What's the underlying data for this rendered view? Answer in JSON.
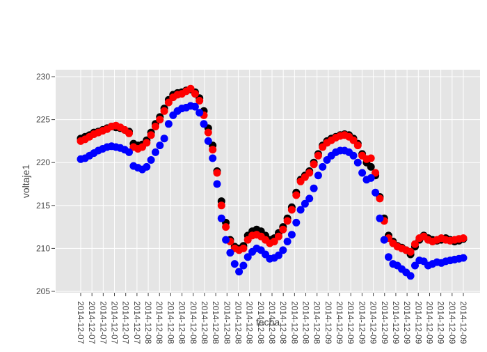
{
  "chart_data": {
    "type": "scatter",
    "title": "",
    "xlabel": "fecha",
    "ylabel": "voltaje1",
    "ylim": [
      205,
      230
    ],
    "yticks": [
      205,
      210,
      215,
      220,
      225,
      230
    ],
    "xtick_labels": [
      "2014-12-07",
      "2014-12-07",
      "2014-12-07",
      "2014-12-07",
      "2014-12-07",
      "2014-12-07",
      "2014-12-08",
      "2014-12-08",
      "2014-12-08",
      "2014-12-08",
      "2014-12-08",
      "2014-12-08",
      "2014-12-08",
      "2014-12-08",
      "2014-12-08",
      "2014-12-08",
      "2014-12-08",
      "2014-12-08",
      "2014-12-08",
      "2014-12-08",
      "2014-12-08",
      "2014-12-08",
      "2014-12-09",
      "2014-12-09",
      "2014-12-09",
      "2014-12-09",
      "2014-12-09",
      "2014-12-09",
      "2014-12-09",
      "2014-12-09",
      "2014-12-09",
      "2014-12-09",
      "2014-12-09",
      "2014-12-09",
      "2014-12-09"
    ],
    "x_index_range": [
      0,
      34
    ],
    "grid": true,
    "background": "#e5e5e5",
    "series": [
      {
        "color": "#000000",
        "points": [
          [
            0,
            222.8
          ],
          [
            0.5,
            223.0
          ],
          [
            1,
            223.2
          ],
          [
            1.5,
            223.5
          ],
          [
            2,
            223.6
          ],
          [
            2.5,
            223.8
          ],
          [
            3,
            224.0
          ],
          [
            3.5,
            224.2
          ],
          [
            4,
            224.1
          ],
          [
            4.5,
            224.0
          ],
          [
            5,
            223.8
          ],
          [
            5.5,
            223.6
          ],
          [
            6,
            222.2
          ],
          [
            6.5,
            222.0
          ],
          [
            7,
            222.1
          ],
          [
            7.5,
            222.6
          ],
          [
            8,
            223.5
          ],
          [
            8.5,
            224.5
          ],
          [
            9,
            225.3
          ],
          [
            9.5,
            226.3
          ],
          [
            10,
            227.3
          ],
          [
            10.5,
            227.9
          ],
          [
            11,
            228.1
          ],
          [
            11.5,
            228.2
          ],
          [
            12,
            228.4
          ],
          [
            12.5,
            228.5
          ],
          [
            13,
            228.2
          ],
          [
            13.5,
            227.5
          ],
          [
            14,
            226.0
          ],
          [
            14.5,
            224.0
          ],
          [
            15,
            222.0
          ],
          [
            15.5,
            219.0
          ],
          [
            16,
            215.5
          ],
          [
            16.5,
            213.0
          ],
          [
            17,
            211.0
          ],
          [
            17.5,
            210.2
          ],
          [
            18,
            210.0
          ],
          [
            18.5,
            210.3
          ],
          [
            19,
            211.5
          ],
          [
            19.5,
            212.0
          ],
          [
            20,
            212.2
          ],
          [
            20.5,
            212.0
          ],
          [
            21,
            211.5
          ],
          [
            21.5,
            211.0
          ],
          [
            22,
            211.2
          ],
          [
            22.5,
            211.8
          ],
          [
            23,
            212.5
          ],
          [
            23.5,
            213.5
          ],
          [
            24,
            214.8
          ],
          [
            24.5,
            216.5
          ],
          [
            25,
            218.0
          ],
          [
            25.5,
            218.5
          ],
          [
            26,
            219.0
          ],
          [
            26.5,
            220.0
          ],
          [
            27,
            221.0
          ],
          [
            27.5,
            222.0
          ],
          [
            28,
            222.5
          ],
          [
            28.5,
            222.8
          ],
          [
            29,
            223.0
          ],
          [
            29.5,
            223.2
          ],
          [
            30,
            223.3
          ],
          [
            30.5,
            223.2
          ],
          [
            31,
            222.8
          ],
          [
            31.5,
            222.2
          ],
          [
            32,
            221.0
          ],
          [
            32.5,
            220.0
          ],
          [
            33,
            219.5
          ],
          [
            33.5,
            218.5
          ],
          [
            34,
            216.0
          ],
          [
            34.5,
            213.5
          ],
          [
            35,
            211.5
          ],
          [
            35.5,
            210.8
          ],
          [
            36,
            210.3
          ],
          [
            36.5,
            210.1
          ],
          [
            37,
            209.8
          ],
          [
            37.5,
            209.3
          ],
          [
            38,
            210.2
          ],
          [
            38.5,
            211.0
          ],
          [
            39,
            211.5
          ],
          [
            39.5,
            211.2
          ],
          [
            40,
            211.0
          ],
          [
            40.5,
            210.9
          ],
          [
            41,
            211.0
          ],
          [
            41.5,
            211.2
          ],
          [
            42,
            211.0
          ],
          [
            42.5,
            210.8
          ],
          [
            43,
            210.9
          ],
          [
            43.5,
            211.1
          ]
        ]
      },
      {
        "color": "#ff0000",
        "points": [
          [
            0,
            222.5
          ],
          [
            0.5,
            222.7
          ],
          [
            1,
            223.0
          ],
          [
            1.5,
            223.3
          ],
          [
            2,
            223.5
          ],
          [
            2.5,
            223.7
          ],
          [
            3,
            223.9
          ],
          [
            3.5,
            224.2
          ],
          [
            4,
            224.3
          ],
          [
            4.5,
            224.1
          ],
          [
            5,
            223.8
          ],
          [
            5.5,
            223.4
          ],
          [
            6,
            221.8
          ],
          [
            6.5,
            221.6
          ],
          [
            7,
            221.8
          ],
          [
            7.5,
            222.3
          ],
          [
            8,
            223.2
          ],
          [
            8.5,
            224.2
          ],
          [
            9,
            225.0
          ],
          [
            9.5,
            226.0
          ],
          [
            10,
            227.0
          ],
          [
            10.5,
            227.6
          ],
          [
            11,
            227.9
          ],
          [
            11.5,
            228.0
          ],
          [
            12,
            228.3
          ],
          [
            12.5,
            228.6
          ],
          [
            13,
            228.0
          ],
          [
            13.5,
            227.2
          ],
          [
            14,
            225.5
          ],
          [
            14.5,
            223.5
          ],
          [
            15,
            221.5
          ],
          [
            15.5,
            218.8
          ],
          [
            16,
            215.0
          ],
          [
            16.5,
            212.5
          ],
          [
            17,
            210.8
          ],
          [
            17.5,
            210.0
          ],
          [
            18,
            209.8
          ],
          [
            18.5,
            210.0
          ],
          [
            19,
            211.0
          ],
          [
            19.5,
            211.5
          ],
          [
            20,
            211.6
          ],
          [
            20.5,
            211.4
          ],
          [
            21,
            211.0
          ],
          [
            21.5,
            210.6
          ],
          [
            22,
            210.8
          ],
          [
            22.5,
            211.4
          ],
          [
            23,
            212.2
          ],
          [
            23.5,
            213.2
          ],
          [
            24,
            214.5
          ],
          [
            24.5,
            216.2
          ],
          [
            25,
            217.8
          ],
          [
            25.5,
            218.3
          ],
          [
            26,
            218.8
          ],
          [
            26.5,
            219.8
          ],
          [
            27,
            220.8
          ],
          [
            27.5,
            221.8
          ],
          [
            28,
            222.3
          ],
          [
            28.5,
            222.6
          ],
          [
            29,
            222.9
          ],
          [
            29.5,
            223.1
          ],
          [
            30,
            223.2
          ],
          [
            30.5,
            223.0
          ],
          [
            31,
            222.6
          ],
          [
            31.5,
            222.0
          ],
          [
            32,
            220.8
          ],
          [
            32.5,
            220.4
          ],
          [
            33,
            220.5
          ],
          [
            33.5,
            218.8
          ],
          [
            34,
            215.8
          ],
          [
            34.5,
            213.2
          ],
          [
            35,
            211.2
          ],
          [
            35.5,
            210.6
          ],
          [
            36,
            210.2
          ],
          [
            36.5,
            210.0
          ],
          [
            37,
            209.8
          ],
          [
            37.5,
            209.6
          ],
          [
            38,
            210.5
          ],
          [
            38.5,
            211.2
          ],
          [
            39,
            211.4
          ],
          [
            39.5,
            211.0
          ],
          [
            40,
            210.8
          ],
          [
            40.5,
            211.0
          ],
          [
            41,
            211.2
          ],
          [
            41.5,
            211.0
          ],
          [
            42,
            210.9
          ],
          [
            42.5,
            211.0
          ],
          [
            43,
            211.1
          ],
          [
            43.5,
            211.2
          ]
        ]
      },
      {
        "color": "#0000ff",
        "points": [
          [
            0,
            220.4
          ],
          [
            0.5,
            220.5
          ],
          [
            1,
            220.8
          ],
          [
            1.5,
            221.1
          ],
          [
            2,
            221.4
          ],
          [
            2.5,
            221.6
          ],
          [
            3,
            221.8
          ],
          [
            3.5,
            221.9
          ],
          [
            4,
            221.8
          ],
          [
            4.5,
            221.7
          ],
          [
            5,
            221.5
          ],
          [
            5.5,
            221.2
          ],
          [
            6,
            219.6
          ],
          [
            6.5,
            219.4
          ],
          [
            7,
            219.2
          ],
          [
            7.5,
            219.5
          ],
          [
            8,
            220.3
          ],
          [
            8.5,
            221.2
          ],
          [
            9,
            222.0
          ],
          [
            9.5,
            222.8
          ],
          [
            10,
            224.5
          ],
          [
            10.5,
            225.5
          ],
          [
            11,
            226.0
          ],
          [
            11.5,
            226.3
          ],
          [
            12,
            226.4
          ],
          [
            12.5,
            226.6
          ],
          [
            13,
            226.5
          ],
          [
            13.5,
            225.8
          ],
          [
            14,
            224.5
          ],
          [
            14.5,
            222.5
          ],
          [
            15,
            220.5
          ],
          [
            15.5,
            217.5
          ],
          [
            16,
            213.5
          ],
          [
            16.5,
            211.0
          ],
          [
            17,
            209.5
          ],
          [
            17.5,
            208.2
          ],
          [
            18,
            207.3
          ],
          [
            18.5,
            208.0
          ],
          [
            19,
            209.0
          ],
          [
            19.5,
            209.6
          ],
          [
            20,
            210.0
          ],
          [
            20.5,
            209.8
          ],
          [
            21,
            209.3
          ],
          [
            21.5,
            208.8
          ],
          [
            22,
            208.9
          ],
          [
            22.5,
            209.2
          ],
          [
            23,
            209.8
          ],
          [
            23.5,
            210.8
          ],
          [
            24,
            211.6
          ],
          [
            24.5,
            213.0
          ],
          [
            25,
            214.5
          ],
          [
            25.5,
            215.2
          ],
          [
            26,
            215.8
          ],
          [
            26.5,
            217.0
          ],
          [
            27,
            218.5
          ],
          [
            27.5,
            219.5
          ],
          [
            28,
            220.3
          ],
          [
            28.5,
            220.8
          ],
          [
            29,
            221.2
          ],
          [
            29.5,
            221.4
          ],
          [
            30,
            221.4
          ],
          [
            30.5,
            221.2
          ],
          [
            31,
            220.8
          ],
          [
            31.5,
            220.0
          ],
          [
            32,
            218.8
          ],
          [
            32.5,
            218.0
          ],
          [
            33,
            218.2
          ],
          [
            33.5,
            216.5
          ],
          [
            34,
            213.5
          ],
          [
            34.5,
            211.0
          ],
          [
            35,
            209.0
          ],
          [
            35.5,
            208.2
          ],
          [
            36,
            208.0
          ],
          [
            36.5,
            207.6
          ],
          [
            37,
            207.2
          ],
          [
            37.5,
            206.8
          ],
          [
            38,
            208.0
          ],
          [
            38.5,
            208.6
          ],
          [
            39,
            208.5
          ],
          [
            39.5,
            208.0
          ],
          [
            40,
            208.2
          ],
          [
            40.5,
            208.4
          ],
          [
            41,
            208.3
          ],
          [
            41.5,
            208.5
          ],
          [
            42,
            208.6
          ],
          [
            42.5,
            208.7
          ],
          [
            43,
            208.8
          ],
          [
            43.5,
            208.9
          ]
        ]
      }
    ]
  }
}
